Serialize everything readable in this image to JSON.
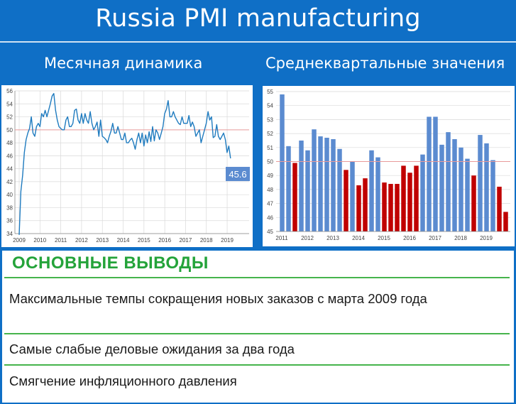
{
  "title": "Russia PMI manufacturing",
  "left_subtitle": "Месячная динамика",
  "right_subtitle": "Среднеквартальные значения",
  "chart_data": [
    {
      "type": "line",
      "x_ticks": [
        "2009",
        "2010",
        "2011",
        "2012",
        "2013",
        "2014",
        "2015",
        "2016",
        "2017",
        "2018",
        "2019"
      ],
      "ylim": [
        34,
        56
      ],
      "y_ticks": [
        34,
        36,
        38,
        40,
        42,
        44,
        46,
        48,
        50,
        52,
        54,
        56
      ],
      "reference_line": 50,
      "x_start": 2009.0,
      "x_step": 0.0833,
      "values": [
        33.8,
        40.5,
        43,
        46.5,
        48.5,
        49.5,
        50.2,
        52,
        49.5,
        49,
        50.5,
        51,
        50.5,
        52.5,
        52,
        53,
        52,
        53,
        54,
        55.2,
        55.6,
        53,
        51.5,
        50.5,
        50.2,
        50,
        50,
        51.5,
        52,
        50.5,
        50.5,
        51,
        53,
        53.2,
        51.5,
        51,
        52.5,
        51,
        52.5,
        51.5,
        51,
        52.8,
        51,
        50,
        50.5,
        51.2,
        49,
        51.5,
        49,
        48.8,
        48.5,
        48,
        49,
        49.8,
        51,
        49.5,
        49.5,
        50.5,
        49.5,
        48.5,
        48.5,
        49.5,
        48,
        48,
        48.4,
        48.7,
        48,
        47,
        48.5,
        49.5,
        48,
        49.5,
        47.5,
        49.2,
        48,
        49.7,
        48.2,
        50.5,
        48.3,
        50,
        49.5,
        48.5,
        49.5,
        50.5,
        52.5,
        53.2,
        54.5,
        52,
        52,
        52.8,
        52,
        51.5,
        51,
        50.8,
        52,
        51,
        51,
        51,
        52.2,
        50.5,
        51.2,
        50.5,
        49,
        49.5,
        50,
        48,
        49,
        50,
        51,
        52.8,
        51.5,
        52,
        48.8,
        49,
        50.8,
        49,
        48.5,
        49,
        49.5,
        48.5,
        46.5,
        47.5,
        45.6
      ],
      "last_label": "45.6"
    },
    {
      "type": "bar",
      "x_ticks": [
        "2011",
        "2012",
        "2013",
        "2014",
        "2015",
        "2016",
        "2017",
        "2018",
        "2019"
      ],
      "ylim": [
        45,
        55
      ],
      "y_ticks": [
        45,
        46,
        47,
        48,
        49,
        50,
        51,
        52,
        53,
        54,
        55
      ],
      "reference_line": 50,
      "values": [
        54.8,
        51.1,
        49.9,
        51.5,
        50.8,
        52.3,
        51.8,
        51.7,
        51.6,
        50.9,
        49.4,
        50,
        48.3,
        48.8,
        50.8,
        50.3,
        48.5,
        48.4,
        48.4,
        49.7,
        49.2,
        49.7,
        50.5,
        53.2,
        53.2,
        51.2,
        52.1,
        51.6,
        51,
        50.2,
        49,
        51.9,
        51.3,
        50.1,
        48.2,
        46.4
      ],
      "colors": {
        "above": "#5b8bd0",
        "below": "#c00000"
      }
    }
  ],
  "bottom": {
    "heading": "ОСНОВНЫЕ ВЫВОДЫ",
    "items": [
      "Максимальные темпы сокращения новых заказов с марта 2009 года",
      "Самые слабые деловые ожидания за два года",
      "Смягчение инфляционного давления"
    ]
  }
}
